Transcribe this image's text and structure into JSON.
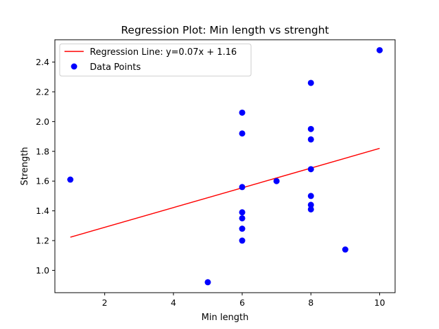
{
  "chart_data": {
    "type": "scatter",
    "title": "Regression Plot: Min length vs strenght",
    "xlabel": "Min length",
    "ylabel": "Strength",
    "xlim": [
      0.55,
      10.45
    ],
    "ylim": [
      0.85,
      2.55
    ],
    "xticks": [
      2,
      4,
      6,
      8,
      10
    ],
    "yticks": [
      1.0,
      1.2,
      1.4,
      1.6,
      1.8,
      2.0,
      2.2,
      2.4
    ],
    "grid": false,
    "legend_position": "top-left",
    "series": [
      {
        "name": "Data Points",
        "type": "scatter",
        "color": "#0000ff",
        "points": [
          [
            1,
            1.61
          ],
          [
            5,
            0.92
          ],
          [
            6,
            2.06
          ],
          [
            6,
            1.92
          ],
          [
            6,
            1.56
          ],
          [
            6,
            1.39
          ],
          [
            6,
            1.35
          ],
          [
            6,
            1.28
          ],
          [
            6,
            1.2
          ],
          [
            7,
            1.6
          ],
          [
            8,
            2.26
          ],
          [
            8,
            1.95
          ],
          [
            8,
            1.88
          ],
          [
            8,
            1.68
          ],
          [
            8,
            1.5
          ],
          [
            8,
            1.44
          ],
          [
            8,
            1.41
          ],
          [
            9,
            1.14
          ],
          [
            10,
            2.48
          ]
        ]
      },
      {
        "name": "Regression Line: y=0.07x + 1.16",
        "type": "line",
        "color": "#ff0000",
        "points": [
          [
            1,
            1.223
          ],
          [
            10,
            1.82
          ]
        ]
      }
    ]
  }
}
